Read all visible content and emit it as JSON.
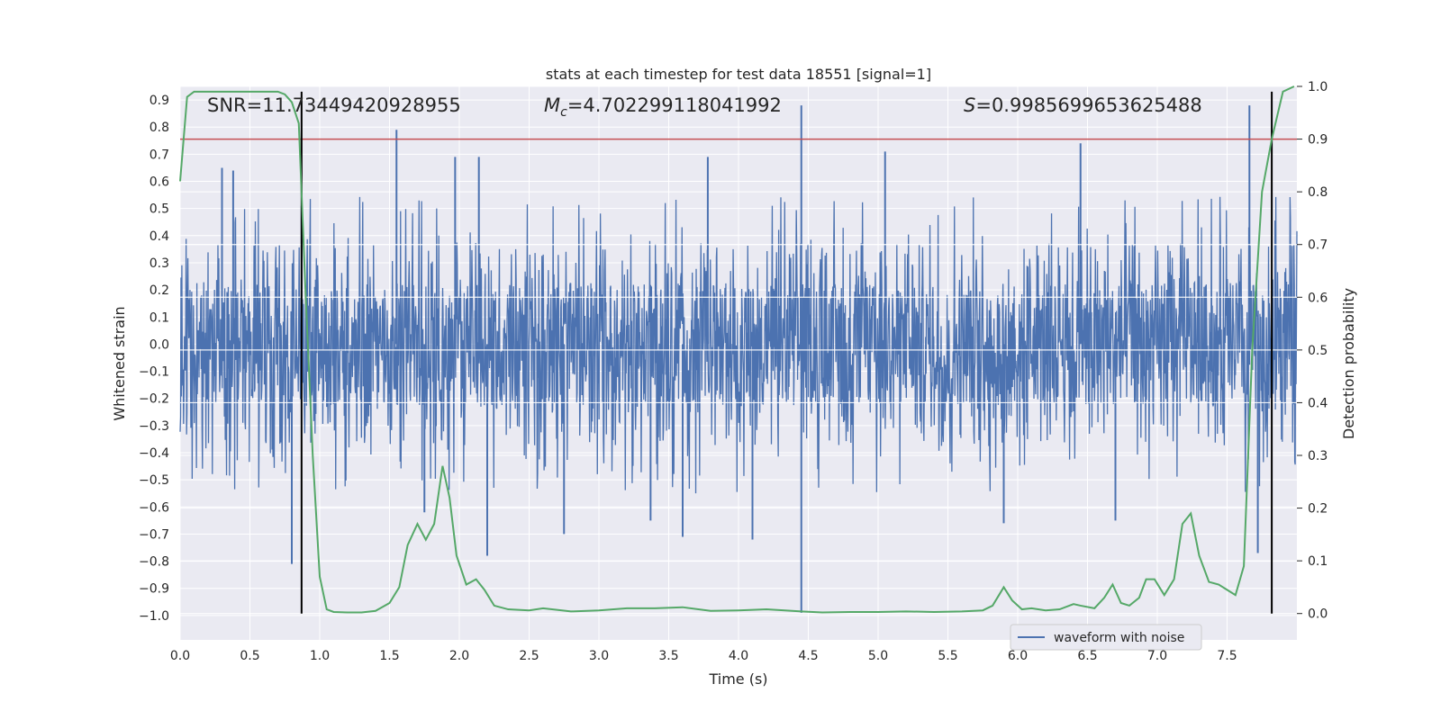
{
  "chart_data": {
    "type": "line",
    "title": "stats at each timestep for test data 18551 [signal=1]",
    "xlabel": "Time (s)",
    "ylabel": "Whitened strain",
    "y2label": "Detection probability",
    "xlim": [
      0.0,
      8.0
    ],
    "ylim": [
      -1.09,
      0.95
    ],
    "y2lim": [
      -0.05,
      1.0
    ],
    "xticks": [
      0.0,
      0.5,
      1.0,
      1.5,
      2.0,
      2.5,
      3.0,
      3.5,
      4.0,
      4.5,
      5.0,
      5.5,
      6.0,
      6.5,
      7.0,
      7.5
    ],
    "yticks": [
      0.9,
      0.8,
      0.7,
      0.6,
      0.5,
      0.4,
      0.3,
      0.2,
      0.1,
      0.0,
      -0.1,
      -0.2,
      -0.3,
      -0.4,
      -0.5,
      -0.6,
      -0.7,
      -0.8,
      -0.9,
      -1.0
    ],
    "y2ticks": [
      1.0,
      0.9,
      0.8,
      0.7,
      0.6,
      0.5,
      0.4,
      0.3,
      0.2,
      0.1,
      0.0
    ],
    "legend": {
      "placement": "lower-right",
      "entries": [
        "waveform with noise"
      ]
    },
    "annotations": {
      "snr": "SNR=11.73449420928955",
      "mc_symbol": "M",
      "mc_sub": "c",
      "mc_value": "=4.702299118041992",
      "s_symbol": "S",
      "s_value": "=0.9985699653625488"
    },
    "threshold": {
      "axis": "y2",
      "value": 0.9,
      "color": "#c44e52"
    },
    "vlines": [
      0.87,
      7.82
    ],
    "colors": {
      "waveform": "#4c72b0",
      "probability": "#55a868",
      "threshold": "#c44e52",
      "vline": "#000000",
      "panel": "#eaeaf2",
      "grid": "#ffffff"
    },
    "waveform": {
      "name": "waveform with noise",
      "duration": 8.0,
      "base_amplitude": 0.3,
      "peaks": [
        {
          "t": 0.3,
          "v": 0.65
        },
        {
          "t": 0.38,
          "v": 0.64
        },
        {
          "t": 0.87,
          "v": 0.51
        },
        {
          "t": 1.55,
          "v": 0.79
        },
        {
          "t": 1.97,
          "v": 0.69
        },
        {
          "t": 2.14,
          "v": 0.69
        },
        {
          "t": 3.78,
          "v": 0.69
        },
        {
          "t": 4.45,
          "v": 0.88
        },
        {
          "t": 5.05,
          "v": 0.71
        },
        {
          "t": 6.45,
          "v": 0.74
        },
        {
          "t": 7.66,
          "v": 0.88
        }
      ],
      "troughs": [
        {
          "t": 0.8,
          "v": -0.81
        },
        {
          "t": 1.75,
          "v": -0.62
        },
        {
          "t": 2.2,
          "v": -0.78
        },
        {
          "t": 2.75,
          "v": -0.7
        },
        {
          "t": 3.37,
          "v": -0.65
        },
        {
          "t": 3.6,
          "v": -0.71
        },
        {
          "t": 4.1,
          "v": -0.72
        },
        {
          "t": 4.45,
          "v": -0.99
        },
        {
          "t": 5.9,
          "v": -0.66
        },
        {
          "t": 6.7,
          "v": -0.65
        },
        {
          "t": 7.72,
          "v": -0.77
        }
      ]
    },
    "probability": {
      "name": "detection probability",
      "x": [
        0.0,
        0.05,
        0.1,
        0.15,
        0.2,
        0.3,
        0.4,
        0.5,
        0.6,
        0.7,
        0.75,
        0.8,
        0.85,
        0.9,
        0.95,
        1.0,
        1.05,
        1.1,
        1.2,
        1.3,
        1.4,
        1.5,
        1.57,
        1.63,
        1.7,
        1.76,
        1.82,
        1.88,
        1.93,
        1.98,
        2.05,
        2.12,
        2.18,
        2.25,
        2.35,
        2.5,
        2.6,
        2.8,
        3.0,
        3.2,
        3.4,
        3.6,
        3.8,
        4.0,
        4.2,
        4.45,
        4.6,
        4.8,
        5.0,
        5.2,
        5.4,
        5.6,
        5.75,
        5.82,
        5.9,
        5.96,
        6.03,
        6.1,
        6.2,
        6.3,
        6.4,
        6.45,
        6.55,
        6.62,
        6.68,
        6.74,
        6.8,
        6.87,
        6.92,
        6.98,
        7.05,
        7.12,
        7.18,
        7.24,
        7.3,
        7.37,
        7.44,
        7.5,
        7.56,
        7.62,
        7.68,
        7.75,
        7.82,
        7.9,
        7.98
      ],
      "values": [
        0.82,
        0.98,
        0.99,
        0.99,
        0.99,
        0.99,
        0.99,
        0.99,
        0.99,
        0.99,
        0.985,
        0.97,
        0.93,
        0.6,
        0.3,
        0.07,
        0.008,
        0.003,
        0.002,
        0.002,
        0.005,
        0.02,
        0.05,
        0.13,
        0.17,
        0.14,
        0.17,
        0.28,
        0.22,
        0.11,
        0.055,
        0.065,
        0.045,
        0.015,
        0.008,
        0.006,
        0.01,
        0.004,
        0.006,
        0.01,
        0.01,
        0.012,
        0.005,
        0.006,
        0.008,
        0.004,
        0.002,
        0.003,
        0.003,
        0.004,
        0.003,
        0.004,
        0.006,
        0.015,
        0.05,
        0.025,
        0.008,
        0.01,
        0.006,
        0.008,
        0.018,
        0.015,
        0.01,
        0.03,
        0.055,
        0.02,
        0.015,
        0.03,
        0.065,
        0.065,
        0.035,
        0.065,
        0.17,
        0.19,
        0.11,
        0.06,
        0.055,
        0.045,
        0.035,
        0.09,
        0.5,
        0.8,
        0.9,
        0.99,
        1.0
      ]
    }
  }
}
